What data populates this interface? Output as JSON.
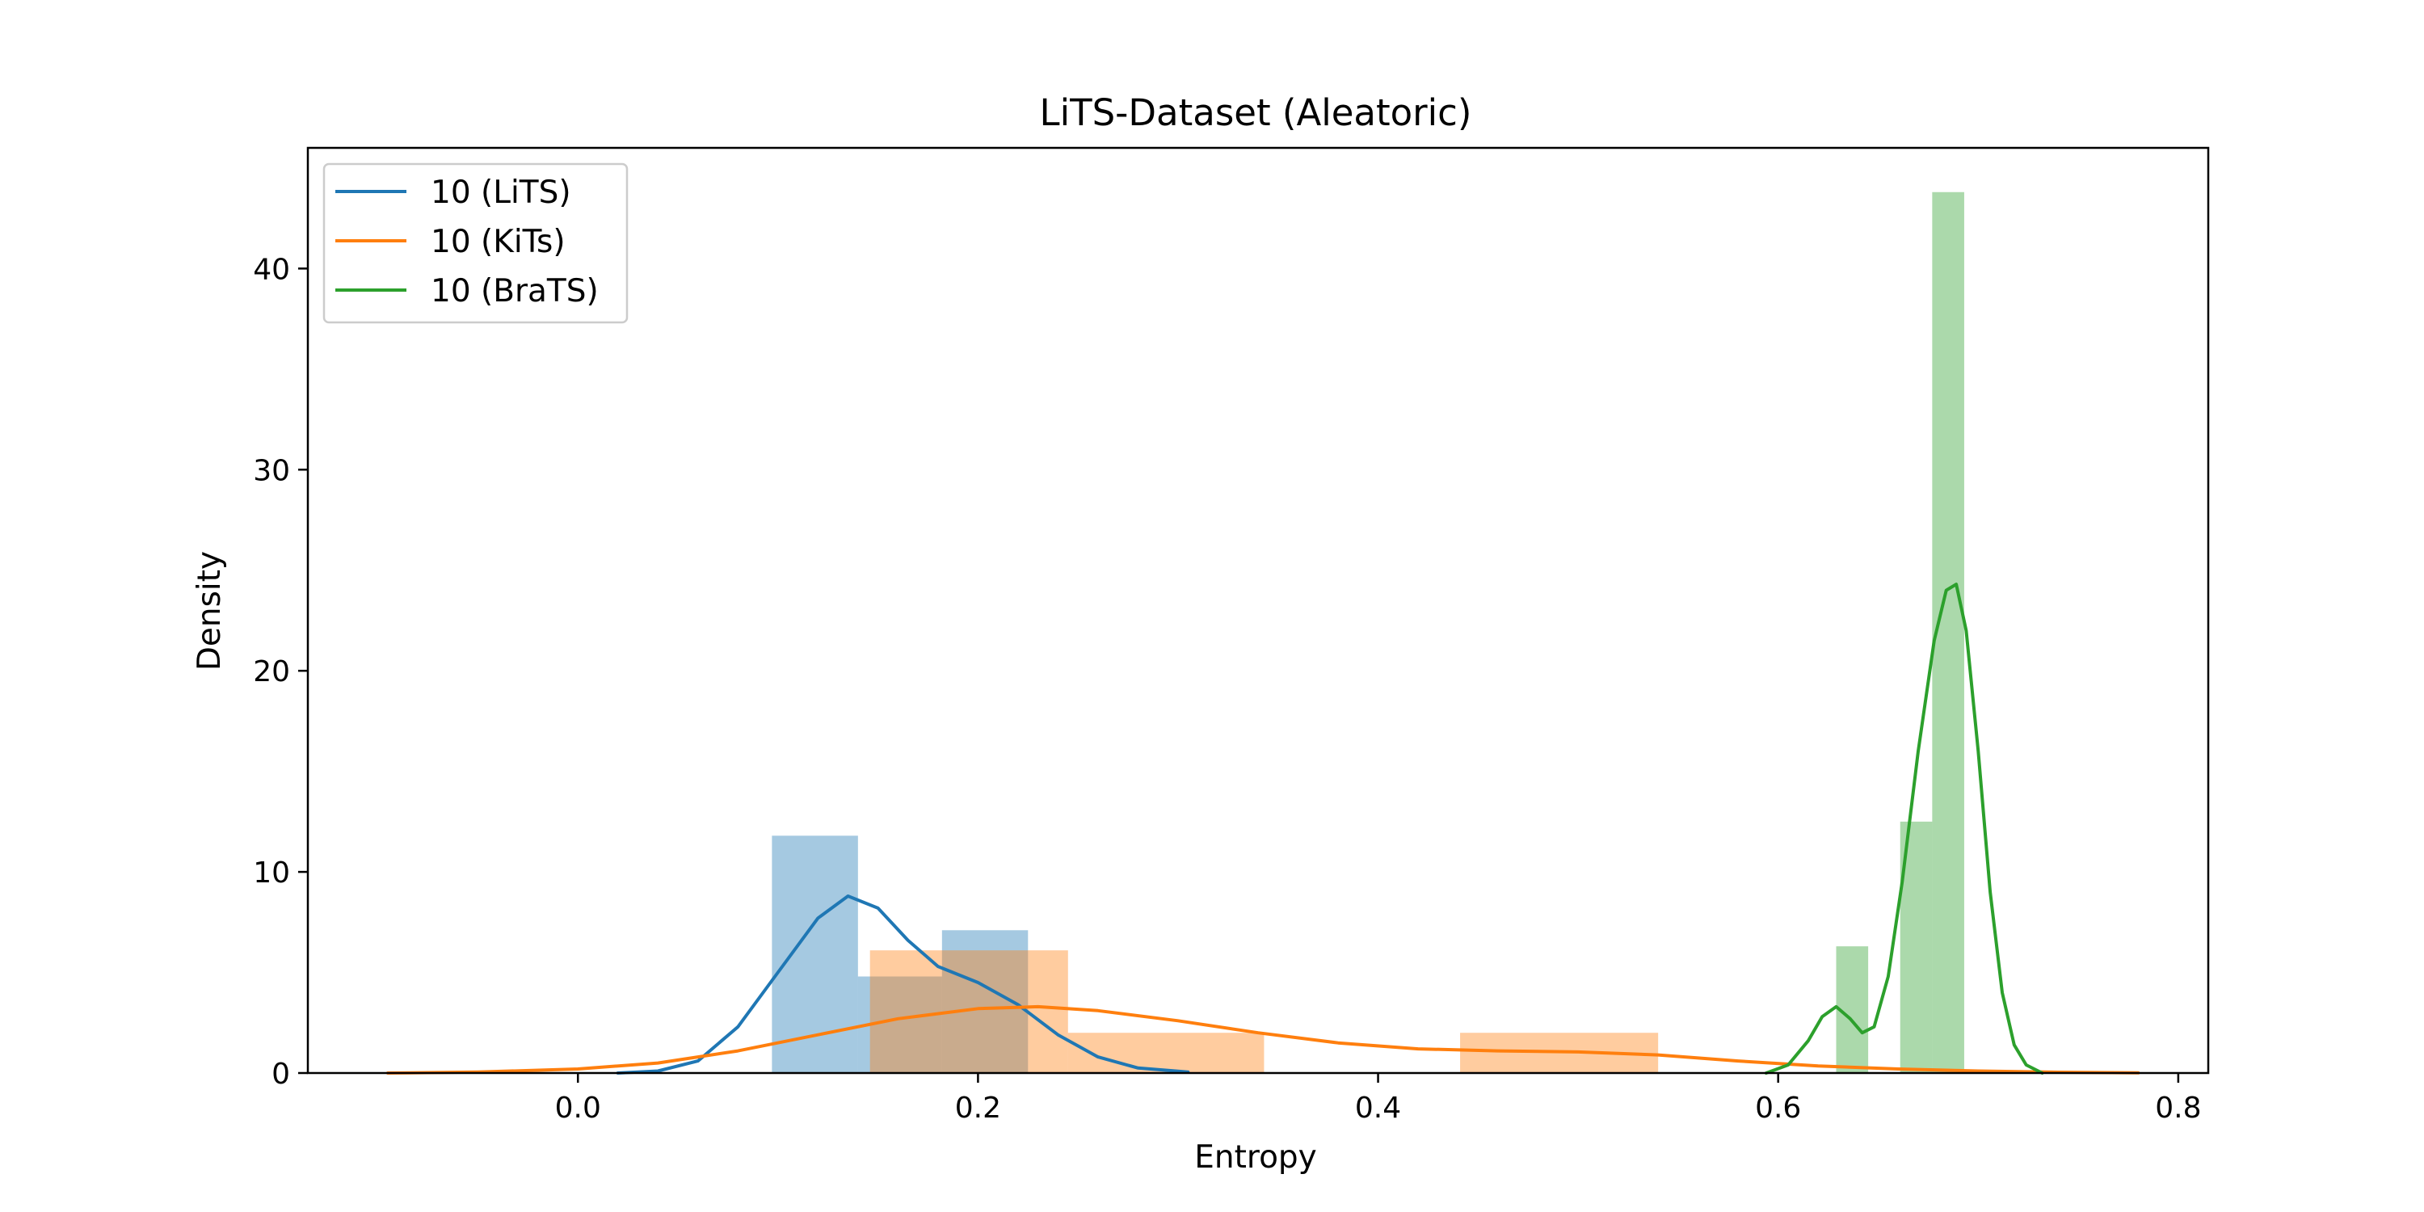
{
  "chart_data": {
    "type": "histogram-kde",
    "title": "LiTS-Dataset (Aleatoric)",
    "xlabel": "Entropy",
    "ylabel": "Density",
    "xlim": [
      -0.135,
      0.815
    ],
    "ylim": [
      0,
      46
    ],
    "xticks": [
      "0.0",
      "0.2",
      "0.4",
      "0.6",
      "0.8"
    ],
    "xtick_values": [
      0.0,
      0.2,
      0.4,
      0.6,
      0.8
    ],
    "yticks": [
      "0",
      "10",
      "20",
      "30",
      "40"
    ],
    "ytick_values": [
      0,
      10,
      20,
      30,
      40
    ],
    "grid": false,
    "legend_position": "top-left",
    "series": [
      {
        "name": "10 (LiTS)",
        "color": "#1f77b4",
        "bins": [
          {
            "x0": 0.097,
            "x1": 0.14,
            "density": 11.8
          },
          {
            "x0": 0.14,
            "x1": 0.182,
            "density": 4.8
          },
          {
            "x0": 0.182,
            "x1": 0.225,
            "density": 7.1
          }
        ],
        "kde": [
          [
            0.02,
            0.0
          ],
          [
            0.04,
            0.1
          ],
          [
            0.06,
            0.6
          ],
          [
            0.08,
            2.3
          ],
          [
            0.1,
            5.0
          ],
          [
            0.12,
            7.7
          ],
          [
            0.135,
            8.8
          ],
          [
            0.15,
            8.2
          ],
          [
            0.165,
            6.6
          ],
          [
            0.18,
            5.3
          ],
          [
            0.2,
            4.5
          ],
          [
            0.22,
            3.4
          ],
          [
            0.24,
            1.9
          ],
          [
            0.26,
            0.8
          ],
          [
            0.28,
            0.25
          ],
          [
            0.305,
            0.05
          ]
        ]
      },
      {
        "name": "10 (KiTs)",
        "color": "#ff7f0e",
        "bins": [
          {
            "x0": 0.146,
            "x1": 0.245,
            "density": 6.1
          },
          {
            "x0": 0.245,
            "x1": 0.343,
            "density": 2.0
          },
          {
            "x0": 0.441,
            "x1": 0.54,
            "density": 2.0
          }
        ],
        "kde": [
          [
            -0.095,
            0.0
          ],
          [
            -0.05,
            0.05
          ],
          [
            0.0,
            0.2
          ],
          [
            0.04,
            0.5
          ],
          [
            0.08,
            1.1
          ],
          [
            0.12,
            1.9
          ],
          [
            0.16,
            2.7
          ],
          [
            0.2,
            3.2
          ],
          [
            0.23,
            3.3
          ],
          [
            0.26,
            3.1
          ],
          [
            0.3,
            2.6
          ],
          [
            0.34,
            2.0
          ],
          [
            0.38,
            1.5
          ],
          [
            0.42,
            1.2
          ],
          [
            0.46,
            1.1
          ],
          [
            0.5,
            1.05
          ],
          [
            0.54,
            0.9
          ],
          [
            0.58,
            0.6
          ],
          [
            0.62,
            0.35
          ],
          [
            0.66,
            0.2
          ],
          [
            0.7,
            0.1
          ],
          [
            0.74,
            0.04
          ],
          [
            0.78,
            0.01
          ]
        ]
      },
      {
        "name": "10 (BraTS)",
        "color": "#2ca02c",
        "bins": [
          {
            "x0": 0.629,
            "x1": 0.645,
            "density": 6.3
          },
          {
            "x0": 0.661,
            "x1": 0.677,
            "density": 12.5
          },
          {
            "x0": 0.677,
            "x1": 0.693,
            "density": 43.8
          }
        ],
        "kde": [
          [
            0.594,
            0.0
          ],
          [
            0.605,
            0.4
          ],
          [
            0.615,
            1.6
          ],
          [
            0.622,
            2.8
          ],
          [
            0.629,
            3.3
          ],
          [
            0.636,
            2.7
          ],
          [
            0.642,
            2.0
          ],
          [
            0.648,
            2.3
          ],
          [
            0.655,
            4.8
          ],
          [
            0.662,
            9.5
          ],
          [
            0.67,
            16.0
          ],
          [
            0.678,
            21.5
          ],
          [
            0.684,
            24.0
          ],
          [
            0.689,
            24.3
          ],
          [
            0.694,
            22.0
          ],
          [
            0.7,
            16.0
          ],
          [
            0.706,
            9.0
          ],
          [
            0.712,
            4.0
          ],
          [
            0.718,
            1.4
          ],
          [
            0.724,
            0.4
          ],
          [
            0.732,
            0.0
          ]
        ]
      }
    ]
  }
}
